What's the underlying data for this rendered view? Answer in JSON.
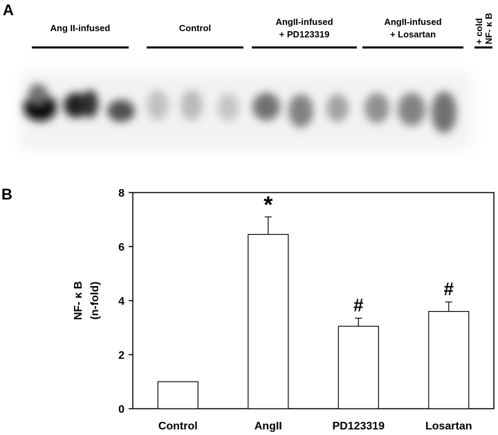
{
  "panel_a": {
    "letter": "A",
    "groups": [
      {
        "label_lines": [
          "Ang II-infused"
        ]
      },
      {
        "label_lines": [
          "Control"
        ]
      },
      {
        "label_lines": [
          "AngII-infused",
          "+ PD123319"
        ]
      },
      {
        "label_lines": [
          "AngII-infused",
          "+ Losartan"
        ]
      }
    ],
    "cold_label_lines": [
      "+ cold",
      "NF- κ B"
    ]
  },
  "panel_b": {
    "letter": "B"
  },
  "chart_data": {
    "type": "bar",
    "categories": [
      "Control",
      "AngII",
      "PD123319",
      "Losartan"
    ],
    "values": [
      1.0,
      6.45,
      3.05,
      3.6
    ],
    "errors": [
      0.0,
      0.65,
      0.3,
      0.35
    ],
    "annotations": [
      "",
      "*",
      "#",
      "#"
    ],
    "ylabel_lines": [
      "NF- κ B",
      "(n-fold)"
    ],
    "yticks": [
      "0",
      "2",
      "4",
      "6",
      "8"
    ],
    "ylim": [
      0,
      8
    ],
    "grid": false
  }
}
